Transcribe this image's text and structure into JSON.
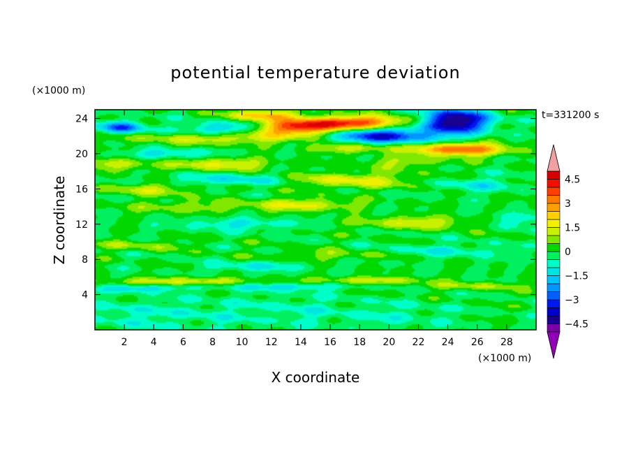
{
  "chart_data": {
    "type": "heatmap",
    "title": "potential temperature deviation",
    "xlabel": "X coordinate",
    "ylabel": "Z coordinate",
    "x_unit": "(×1000 m)",
    "y_unit": "(×1000 m)",
    "time_label": "t=331200 s",
    "xlim": [
      0,
      30
    ],
    "ylim": [
      0,
      25
    ],
    "x_ticks": [
      2,
      4,
      6,
      8,
      10,
      12,
      14,
      16,
      18,
      20,
      22,
      24,
      26,
      28
    ],
    "y_ticks": [
      4,
      8,
      12,
      16,
      20,
      24
    ],
    "colorbar": {
      "levels": [
        -5,
        -4.5,
        -4,
        -3.5,
        -3,
        -2.5,
        -2,
        -1.5,
        -1,
        -0.5,
        0,
        0.5,
        1,
        1.5,
        2,
        2.5,
        3,
        3.5,
        4,
        4.5,
        5
      ],
      "labels": [
        "4.5",
        "3",
        "1.5",
        "0",
        "−1.5",
        "−3",
        "−4.5"
      ],
      "label_values": [
        4.5,
        3,
        1.5,
        0,
        -1.5,
        -3,
        -4.5
      ],
      "colors": [
        "#7a00a8",
        "#1a0090",
        "#0000c8",
        "#0018f0",
        "#0060ff",
        "#0096ff",
        "#00c4ff",
        "#00e4e4",
        "#00ffc8",
        "#00f060",
        "#00d800",
        "#80e800",
        "#c8f000",
        "#f0f000",
        "#ffd000",
        "#ffa000",
        "#ff7800",
        "#ff4000",
        "#f01000",
        "#d80000"
      ],
      "under_color": "#9400b8",
      "over_color": "#f0a0a0"
    },
    "features": [
      {
        "x": 24.5,
        "z": 23.7,
        "value": -5.0,
        "sx": 1.6,
        "sz": 0.9
      },
      {
        "x": 19.5,
        "z": 22.0,
        "value": -3.6,
        "sx": 2.6,
        "sz": 0.6
      },
      {
        "x": 1.8,
        "z": 23.0,
        "value": -3.0,
        "sx": 1.0,
        "sz": 0.5
      },
      {
        "x": 8.5,
        "z": 22.8,
        "value": -1.8,
        "sx": 2.0,
        "sz": 0.5
      },
      {
        "x": 5.0,
        "z": 20.0,
        "value": -1.2,
        "sx": 2.2,
        "sz": 0.4
      },
      {
        "x": 14.0,
        "z": 23.0,
        "value": 4.2,
        "sx": 2.0,
        "sz": 0.6
      },
      {
        "x": 18.0,
        "z": 23.6,
        "value": 3.6,
        "sx": 2.4,
        "sz": 0.5
      },
      {
        "x": 11.5,
        "z": 24.4,
        "value": 2.4,
        "sx": 1.6,
        "sz": 0.4
      },
      {
        "x": 24.8,
        "z": 20.5,
        "value": 3.6,
        "sx": 2.2,
        "sz": 0.5
      },
      {
        "x": 9.0,
        "z": 21.8,
        "value": 1.5,
        "sx": 4.5,
        "sz": 0.5
      },
      {
        "x": 17.5,
        "z": 20.7,
        "value": 1.4,
        "sx": 2.2,
        "sz": 0.4
      },
      {
        "x": 1.5,
        "z": 18.8,
        "value": 1.3,
        "sx": 1.5,
        "sz": 0.5
      },
      {
        "x": 8.5,
        "z": 18.8,
        "value": 1.6,
        "sx": 2.5,
        "sz": 0.5
      },
      {
        "x": 21.0,
        "z": 19.0,
        "value": 1.0,
        "sx": 2.0,
        "sz": 0.5
      },
      {
        "x": 17.5,
        "z": 17.0,
        "value": 1.6,
        "sx": 3.0,
        "sz": 0.6
      },
      {
        "x": 4.0,
        "z": 16.0,
        "value": 1.2,
        "sx": 2.5,
        "sz": 0.5
      },
      {
        "x": 9.0,
        "z": 17.0,
        "value": -1.3,
        "sx": 2.8,
        "sz": 0.5
      },
      {
        "x": 26.0,
        "z": 16.5,
        "value": -1.0,
        "sx": 2.0,
        "sz": 0.6
      },
      {
        "x": 14.0,
        "z": 14.2,
        "value": 1.6,
        "sx": 2.5,
        "sz": 0.5
      },
      {
        "x": 6.0,
        "z": 14.0,
        "value": 0.9,
        "sx": 2.5,
        "sz": 0.5
      },
      {
        "x": 22.0,
        "z": 12.2,
        "value": 1.4,
        "sx": 3.0,
        "sz": 0.5
      },
      {
        "x": 10.0,
        "z": 12.0,
        "value": -1.0,
        "sx": 3.0,
        "sz": 0.5
      },
      {
        "x": 28.5,
        "z": 12.5,
        "value": -1.0,
        "sx": 1.5,
        "sz": 0.6
      },
      {
        "x": 3.0,
        "z": 9.6,
        "value": 0.8,
        "sx": 2.5,
        "sz": 0.4
      },
      {
        "x": 16.0,
        "z": 8.5,
        "value": 0.8,
        "sx": 3.0,
        "sz": 0.4
      },
      {
        "x": 24.0,
        "z": 9.0,
        "value": -0.9,
        "sx": 3.0,
        "sz": 0.5
      },
      {
        "x": 11.0,
        "z": 7.2,
        "value": -1.0,
        "sx": 2.5,
        "sz": 0.4
      },
      {
        "x": 6.0,
        "z": 5.5,
        "value": 1.5,
        "sx": 3.5,
        "sz": 0.3
      },
      {
        "x": 18.5,
        "z": 5.6,
        "value": 1.3,
        "sx": 3.0,
        "sz": 0.3
      },
      {
        "x": 26.0,
        "z": 5.0,
        "value": 1.0,
        "sx": 2.5,
        "sz": 0.3
      },
      {
        "x": 3.0,
        "z": 4.7,
        "value": -1.4,
        "sx": 2.0,
        "sz": 0.3
      },
      {
        "x": 13.0,
        "z": 4.9,
        "value": -1.2,
        "sx": 3.0,
        "sz": 0.3
      },
      {
        "x": 2.5,
        "z": 1.6,
        "value": -0.8,
        "sx": 1.8,
        "sz": 1.3
      },
      {
        "x": 7.5,
        "z": 1.8,
        "value": -0.6,
        "sx": 2.0,
        "sz": 1.5
      },
      {
        "x": 13.5,
        "z": 2.2,
        "value": -0.6,
        "sx": 2.5,
        "sz": 1.4
      },
      {
        "x": 20.5,
        "z": 1.6,
        "value": -0.6,
        "sx": 3.0,
        "sz": 1.2
      }
    ]
  }
}
